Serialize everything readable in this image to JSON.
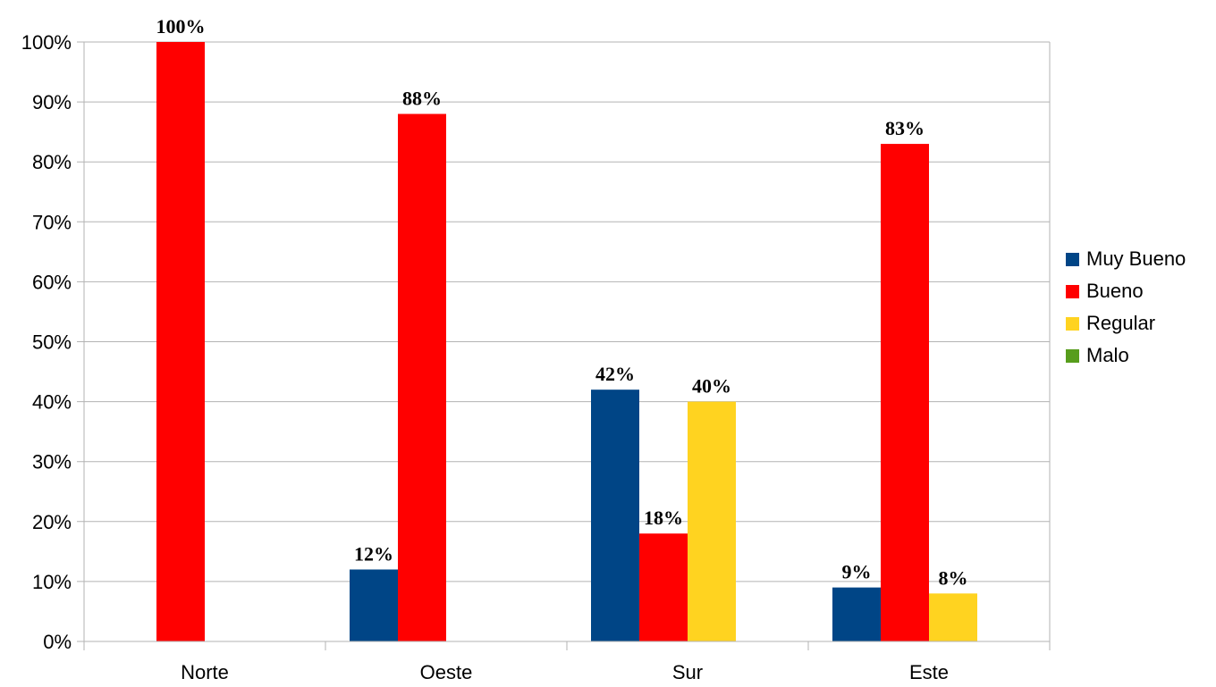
{
  "chart_data": {
    "type": "bar",
    "categories": [
      "Norte",
      "Oeste",
      "Sur",
      "Este"
    ],
    "series": [
      {
        "name": "Muy Bueno",
        "color": "#004586",
        "values": [
          null,
          12,
          42,
          9
        ],
        "labels": [
          "",
          "12%",
          "42%",
          "9%"
        ]
      },
      {
        "name": "Bueno",
        "color": "#ff0000",
        "values": [
          100,
          88,
          18,
          83
        ],
        "labels": [
          "100%",
          "88%",
          "18%",
          "83%"
        ]
      },
      {
        "name": "Regular",
        "color": "#ffd320",
        "values": [
          null,
          null,
          40,
          8
        ],
        "labels": [
          "",
          "",
          "40%",
          "8%"
        ]
      },
      {
        "name": "Malo",
        "color": "#579d1c",
        "values": [
          null,
          null,
          null,
          null
        ],
        "labels": [
          "",
          "",
          "",
          ""
        ]
      }
    ],
    "yticks": [
      "0%",
      "10%",
      "20%",
      "30%",
      "40%",
      "50%",
      "60%",
      "70%",
      "80%",
      "90%",
      "100%"
    ],
    "ylim": [
      0,
      100
    ],
    "grid": true,
    "legend_position": "right"
  }
}
